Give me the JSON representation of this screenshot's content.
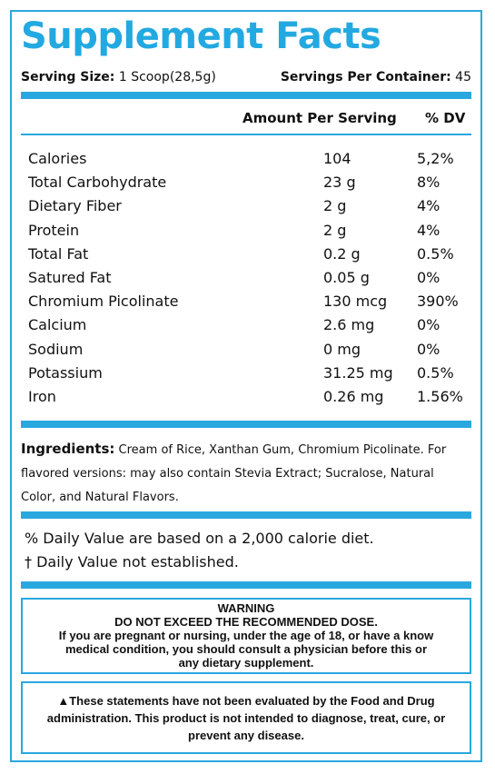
{
  "title": "Supplement Facts",
  "serving": {
    "size_label": "Serving Size:",
    "size_value": "1 Scoop(28,5g)",
    "per_container_label": "Servings Per Container:",
    "per_container_value": "45"
  },
  "table": {
    "amount_header": "Amount Per Serving",
    "dv_header": "% DV",
    "rows": [
      {
        "name": "Calories",
        "amount": "104",
        "dv": "5,2%"
      },
      {
        "name": "Total Carbohydrate",
        "amount": "23 g",
        "dv": "8%"
      },
      {
        "name": "Dietary Fiber",
        "amount": "2 g",
        "dv": "4%"
      },
      {
        "name": "Protein",
        "amount": "2 g",
        "dv": "4%"
      },
      {
        "name": "Total Fat",
        "amount": "0.2 g",
        "dv": "0.5%"
      },
      {
        "name": "Satured Fat",
        "amount": "0.05 g",
        "dv": "0%"
      },
      {
        "name": "Chromium Picolinate",
        "amount": "130 mcg",
        "dv": "390%"
      },
      {
        "name": "Calcium",
        "amount": "2.6 mg",
        "dv": "0%"
      },
      {
        "name": "Sodium",
        "amount": "0 mg",
        "dv": "0%"
      },
      {
        "name": "Potassium",
        "amount": "31.25 mg",
        "dv": "0.5%"
      },
      {
        "name": "Iron",
        "amount": "0.26 mg",
        "dv": "1.56%"
      }
    ]
  },
  "ingredients": {
    "label": "Ingredients:",
    "text": "Cream of Rice, Xanthan Gum, Chromium Picolinate. For flavored versions: may also contain Stevia Extract;  Sucralose, Natural Color, and Natural Flavors."
  },
  "notes": {
    "daily_value": "% Daily Value are based on a 2,000 calorie diet.",
    "not_established": "† Daily Value not established."
  },
  "warning": {
    "title": "WARNING",
    "line1": "DO NOT EXCEED THE RECOMMENDED DOSE.",
    "line2": "If you are pregnant or nursing, under the age of 18, or have a know",
    "line3": "medical condition, you should consult a physician before this or",
    "line4": "any dietary supplement."
  },
  "disclaimer": {
    "line1": "▲These statements have not been evaluated by the Food and Drug",
    "line2": "administration.  This product is not intended to diagnose, treat, cure, or",
    "line3": "prevent any disease."
  }
}
